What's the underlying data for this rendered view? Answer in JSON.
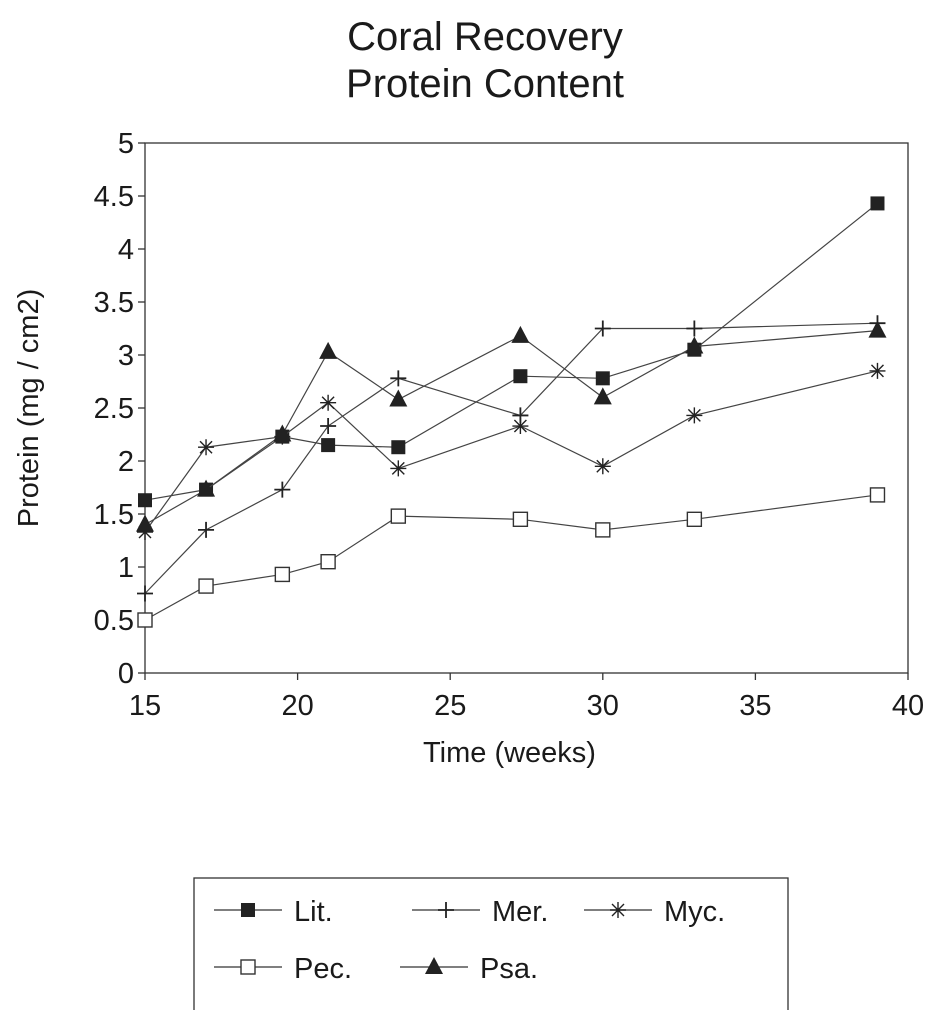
{
  "chart_data": {
    "type": "line",
    "title": [
      "Coral Recovery",
      "Protein Content"
    ],
    "xlabel": "Time (weeks)",
    "ylabel": "Protein (mg / cm2)",
    "xlim": [
      15,
      40
    ],
    "ylim": [
      0,
      5
    ],
    "xticks": [
      "15",
      "20",
      "25",
      "30",
      "35",
      "40"
    ],
    "yticks": [
      "0",
      "0.5",
      "1",
      "1.5",
      "2",
      "2.5",
      "3",
      "3.5",
      "4",
      "4.5",
      "5"
    ],
    "grid": false,
    "legend_position": "bottom",
    "series": [
      {
        "name": "Lit.",
        "marker": "filled-square",
        "x": [
          15,
          17,
          19.5,
          21,
          23.3,
          27.3,
          30,
          33,
          39
        ],
        "y": [
          1.63,
          1.73,
          2.23,
          2.15,
          2.13,
          2.8,
          2.78,
          3.05,
          4.43
        ]
      },
      {
        "name": "Mer.",
        "marker": "plus",
        "x": [
          15,
          17,
          19.5,
          21,
          23.3,
          27.3,
          30,
          33,
          39
        ],
        "y": [
          0.75,
          1.35,
          1.73,
          2.33,
          2.78,
          2.43,
          3.25,
          3.25,
          3.3
        ]
      },
      {
        "name": "Myc.",
        "marker": "asterisk",
        "x": [
          15,
          17,
          19.5,
          21,
          23.3,
          27.3,
          30,
          33,
          39
        ],
        "y": [
          1.33,
          2.13,
          2.23,
          2.55,
          1.93,
          2.33,
          1.95,
          2.43,
          2.85
        ]
      },
      {
        "name": "Pec.",
        "marker": "open-square",
        "x": [
          15,
          17,
          19.5,
          21,
          23.3,
          27.3,
          30,
          33,
          39
        ],
        "y": [
          0.5,
          0.82,
          0.93,
          1.05,
          1.48,
          1.45,
          1.35,
          1.45,
          1.68
        ]
      },
      {
        "name": "Psa.",
        "marker": "filled-triangle",
        "x": [
          15,
          17,
          19.5,
          21,
          23.3,
          27.3,
          30,
          33,
          39
        ],
        "y": [
          1.4,
          1.73,
          2.25,
          3.03,
          2.58,
          3.18,
          2.6,
          3.08,
          3.23
        ]
      }
    ]
  }
}
